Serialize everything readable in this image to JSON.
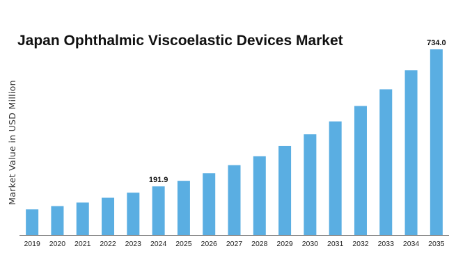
{
  "chart_data": {
    "type": "bar",
    "title": "Japan Ophthalmic Viscoelastic Devices Market",
    "xlabel": "",
    "ylabel": "Market Value in USD Million",
    "categories": [
      "2019",
      "2020",
      "2021",
      "2022",
      "2023",
      "2024",
      "2025",
      "2026",
      "2027",
      "2028",
      "2029",
      "2030",
      "2031",
      "2032",
      "2033",
      "2034",
      "2035"
    ],
    "values": [
      101,
      114,
      128,
      147,
      167,
      191.9,
      214,
      244,
      276,
      311,
      352,
      398,
      449,
      510,
      576,
      651,
      734.0
    ],
    "data_labels": [
      {
        "category": "2024",
        "text": "191.9"
      },
      {
        "category": "2035",
        "text": "734.0"
      }
    ],
    "ylim": [
      0,
      734.0
    ],
    "grid": false,
    "legend": "none",
    "bar_color": "#5aaee2",
    "axis_color": "#555555"
  }
}
